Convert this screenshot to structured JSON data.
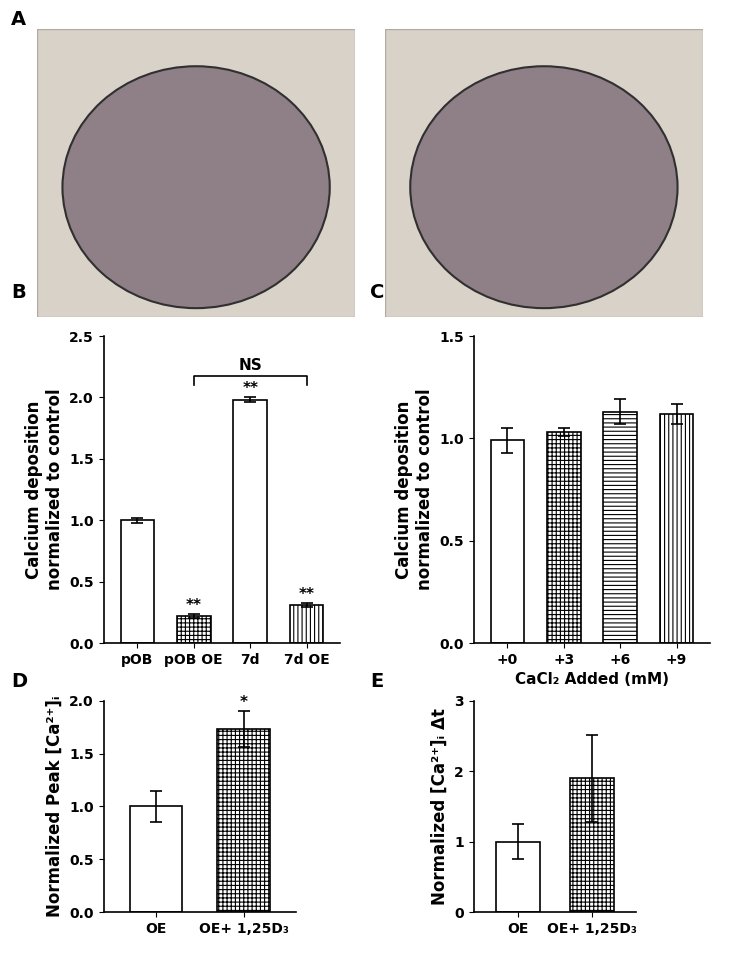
{
  "images": {
    "label": "A",
    "count": 2
  },
  "chart_data": [
    {
      "panel_label": "B",
      "type": "bar",
      "categories": [
        "pOB",
        "pOB OE",
        "7d",
        "7d OE"
      ],
      "values": [
        1.0,
        0.22,
        1.98,
        0.31
      ],
      "errors": [
        0.02,
        0.015,
        0.02,
        0.015
      ],
      "significance": [
        null,
        "**",
        "**",
        "**"
      ],
      "bracket": {
        "text": "NS",
        "from": "pOB OE",
        "to": "7d OE"
      },
      "y_label": "Calcium deposition\nnormalized to control",
      "ylim": [
        0,
        2.5
      ],
      "yticks": [
        {
          "value": 0,
          "label": "0.0"
        },
        {
          "value": 0.5,
          "label": "0.5"
        },
        {
          "value": 1,
          "label": "1.0"
        },
        {
          "value": 1.5,
          "label": "1.5"
        },
        {
          "value": 2,
          "label": "2.0"
        },
        {
          "value": 2.5,
          "label": "2.5"
        }
      ],
      "color": "#ffffff"
    },
    {
      "panel_label": "C",
      "type": "bar",
      "categories": [
        "+0",
        "+3",
        "+6",
        "+9"
      ],
      "values": [
        0.99,
        1.03,
        1.13,
        1.12
      ],
      "errors": [
        0.06,
        0.02,
        0.06,
        0.05
      ],
      "x_label": "CaCl₂ Added (mM)",
      "y_label": "Calcium deposition\nnormalized to control",
      "ylim": [
        0,
        1.5
      ],
      "yticks": [
        {
          "value": 0,
          "label": "0.0"
        },
        {
          "value": 0.5,
          "label": "0.5"
        },
        {
          "value": 1,
          "label": "1.0"
        },
        {
          "value": 1.5,
          "label": "1.5"
        }
      ],
      "color": "#ffffff"
    },
    {
      "panel_label": "D",
      "type": "bar",
      "categories": [
        "OE",
        "OE+ 1,25D₃"
      ],
      "values": [
        1.0,
        1.73
      ],
      "errors": [
        0.15,
        0.17
      ],
      "significance": [
        null,
        "*"
      ],
      "y_label": "Normalized Peak [Ca²⁺]ᵢ",
      "ylim": [
        0,
        2
      ],
      "yticks": [
        {
          "value": 0,
          "label": "0.0"
        },
        {
          "value": 0.5,
          "label": "0.5"
        },
        {
          "value": 1,
          "label": "1.0"
        },
        {
          "value": 1.5,
          "label": "1.5"
        },
        {
          "value": 2,
          "label": "2.0"
        }
      ],
      "color": "#ffffff"
    },
    {
      "panel_label": "E",
      "type": "bar",
      "categories": [
        "OE",
        "OE+ 1,25D₃"
      ],
      "values": [
        1.0,
        1.9
      ],
      "errors": [
        0.25,
        0.62
      ],
      "y_label": "Normalized [Ca²⁺]ᵢ Δt",
      "ylim": [
        0,
        3
      ],
      "yticks": [
        0,
        1,
        2,
        3
      ],
      "color": "#ffffff"
    }
  ]
}
